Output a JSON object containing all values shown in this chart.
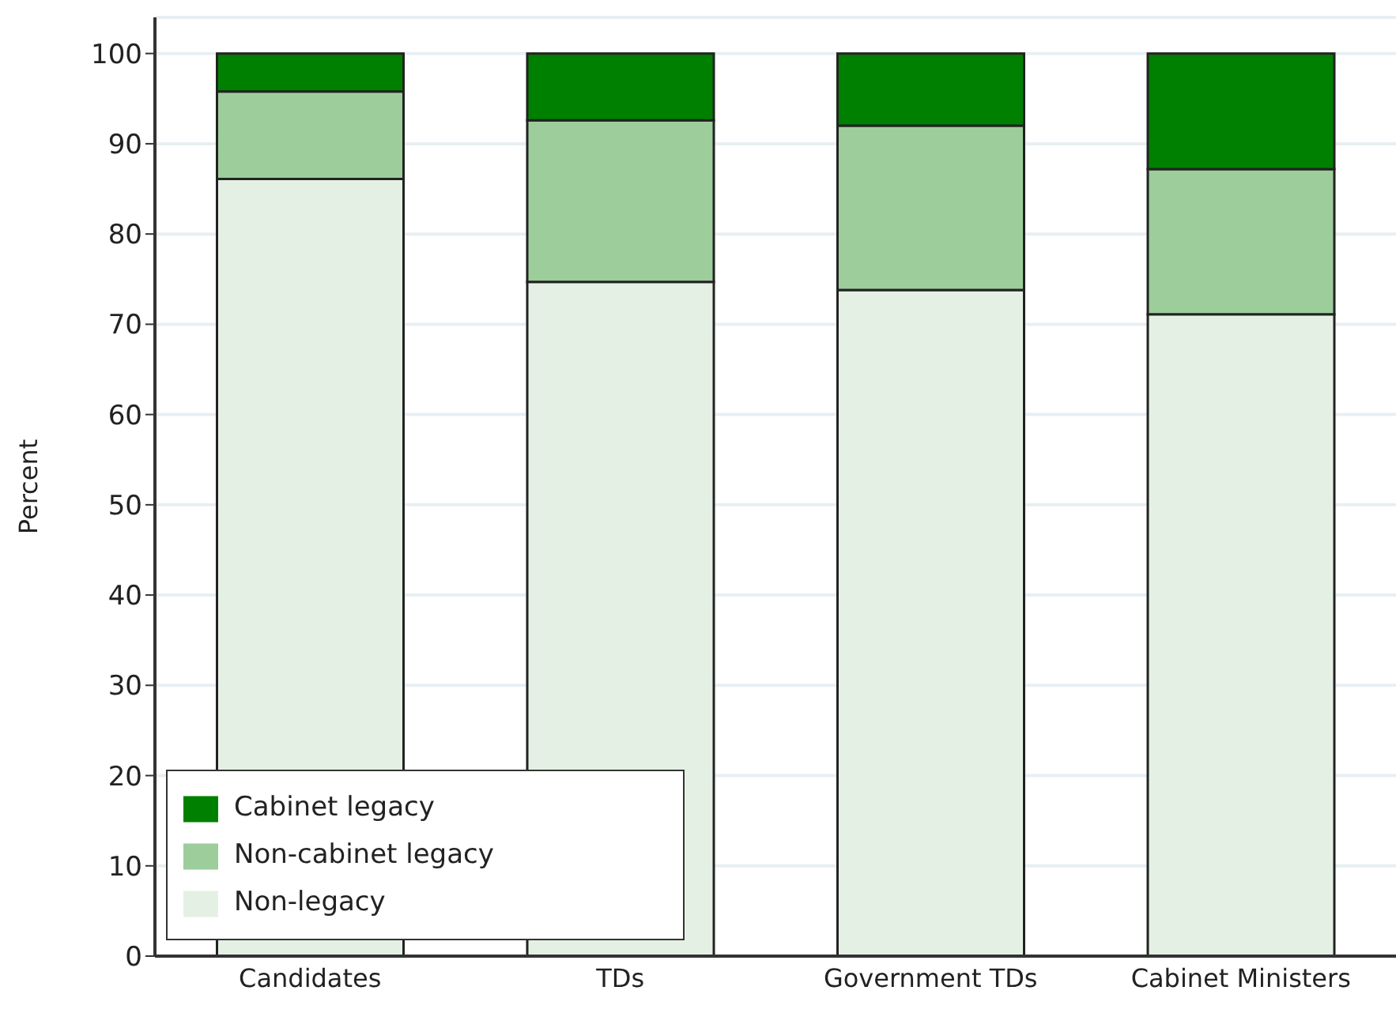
{
  "chart_data": {
    "type": "bar",
    "stacked": true,
    "ylabel": "Percent",
    "categories": [
      "Candidates",
      "TDs",
      "Government TDs",
      "Cabinet Ministers"
    ],
    "series": [
      {
        "name": "Non-legacy",
        "color": "#e5f0e4",
        "values": [
          86.1,
          74.7,
          73.8,
          71.1
        ]
      },
      {
        "name": "Non-cabinet legacy",
        "color": "#9ccd9b",
        "values": [
          9.7,
          17.9,
          18.2,
          16.1
        ]
      },
      {
        "name": "Cabinet legacy",
        "color": "#008000",
        "values": [
          4.2,
          7.4,
          8.0,
          12.8
        ]
      }
    ],
    "ylim": [
      0,
      104
    ],
    "yticks": [
      0,
      10,
      20,
      30,
      40,
      50,
      60,
      70,
      80,
      90,
      100
    ],
    "grid": "y",
    "legend": "bottom left"
  }
}
